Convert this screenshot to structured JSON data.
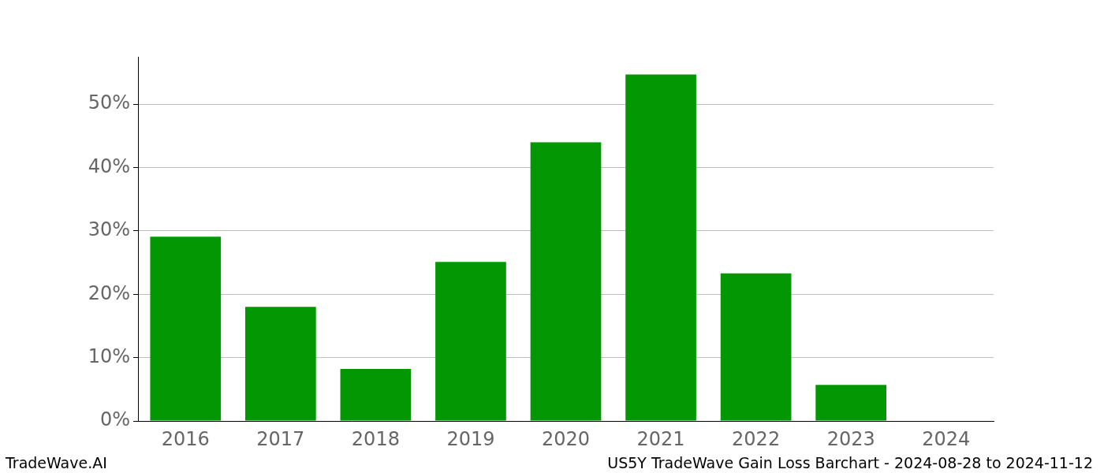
{
  "chart_data": {
    "type": "bar",
    "annotations": [
      "TradeWave.AI",
      "US5Y TradeWave Gain Loss Barchart - 2024-08-28 to 2024-11-12"
    ],
    "categories": [
      "2016",
      "2017",
      "2018",
      "2019",
      "2020",
      "2021",
      "2022",
      "2023",
      "2024"
    ],
    "values": [
      29.1,
      18.0,
      8.2,
      25.1,
      44.0,
      54.7,
      23.3,
      5.7,
      0
    ],
    "color": "#039703",
    "ylim": [
      0,
      57.5
    ],
    "yticks": [
      {
        "value": 0,
        "label": "0%"
      },
      {
        "value": 10,
        "label": "10%"
      },
      {
        "value": 20,
        "label": "20%"
      },
      {
        "value": 30,
        "label": "30%"
      },
      {
        "value": 40,
        "label": "40%"
      },
      {
        "value": 50,
        "label": "50%"
      }
    ],
    "grid": true
  }
}
